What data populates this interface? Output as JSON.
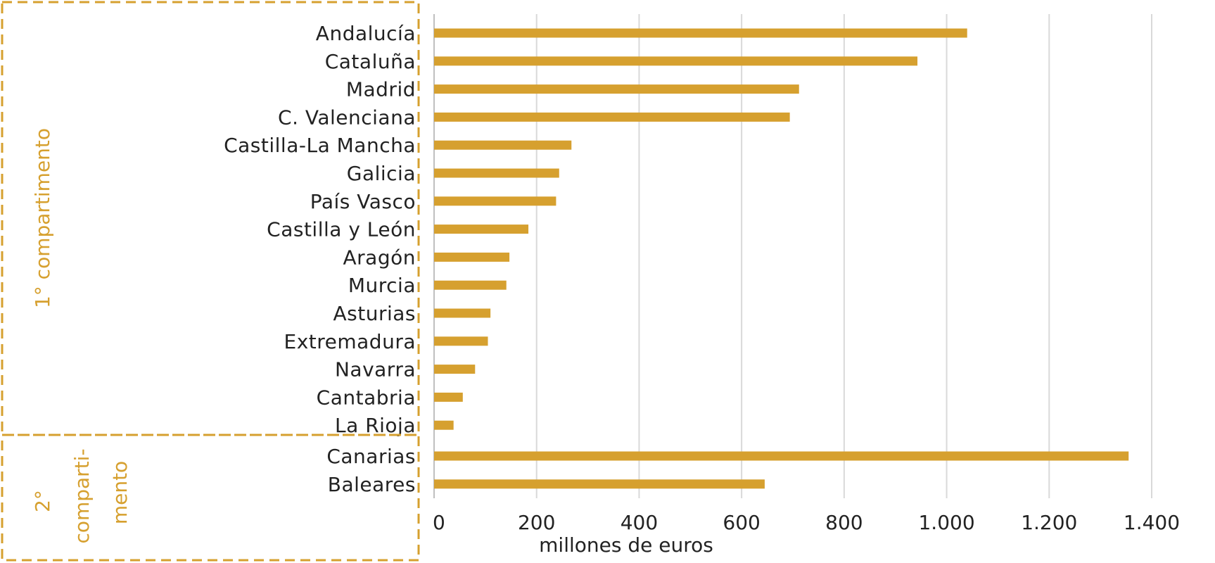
{
  "colors": {
    "bar": "#D6A02F",
    "group_border": "#D6A02F",
    "group_text": "#D6A02F",
    "grid": "#D9D9D9",
    "text": "#222222"
  },
  "chart_data": {
    "type": "bar",
    "orientation": "horizontal",
    "categories": [
      "Andalucía",
      "Cataluña",
      "Madrid",
      "C. Valenciana",
      "Castilla-La Mancha",
      "Galicia",
      "País Vasco",
      "Castilla y León",
      "Aragón",
      "Murcia",
      "Asturias",
      "Extremadura",
      "Navarra",
      "Cantabria",
      "La Rioja",
      "Canarias",
      "Baleares"
    ],
    "values": [
      1040,
      943,
      712,
      694,
      268,
      244,
      238,
      184,
      147,
      141,
      110,
      105,
      80,
      56,
      38,
      1355,
      645
    ],
    "xlabel": "millones de euros",
    "ylabel": "",
    "xlim": [
      0,
      1400
    ],
    "xticks": [
      0,
      200,
      400,
      600,
      800,
      1000,
      1200,
      1400
    ],
    "xtick_labels": [
      "0",
      "200",
      "400",
      "600",
      "800",
      "1.000",
      "1.200",
      "1.400"
    ],
    "grid": "vertical",
    "groups": [
      {
        "label": "1° compartimento",
        "lines": [
          "1° compartimento"
        ],
        "count": 15
      },
      {
        "label": "2° compartimento",
        "lines": [
          "2°",
          "comparti-",
          "mento"
        ],
        "count": 2
      }
    ]
  }
}
